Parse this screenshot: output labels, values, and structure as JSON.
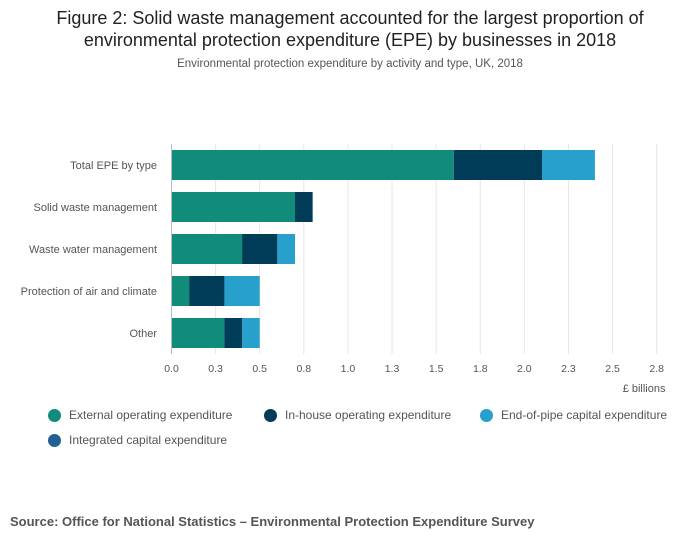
{
  "title_line1": "Figure 2: Solid waste management accounted for the largest proportion of",
  "title_line2": "environmental protection expenditure (EPE) by businesses in 2018",
  "subtitle": "Environmental protection expenditure by activity and type, UK, 2018",
  "source": "Source: Office for National Statistics – Environmental Protection Expenditure Survey",
  "colors": {
    "external": "#118c7b",
    "inhouse": "#003c57",
    "endofpipe": "#27a0cc",
    "integrated": "#206095",
    "grid": "#e6e6e6",
    "label": "#555555"
  },
  "chart_data": {
    "type": "bar",
    "orientation": "horizontal",
    "stacked": true,
    "title": "Figure 2: Solid waste management accounted for the largest proportion of environmental protection expenditure (EPE) by businesses in 2018",
    "subtitle": "Environmental protection expenditure by activity and type, UK, 2018",
    "xlabel": "£ billions",
    "ylabel": "",
    "xlim": [
      0,
      2.8
    ],
    "ticks": [
      0,
      0.25,
      0.5,
      0.75,
      1.0,
      1.25,
      1.5,
      1.75,
      2.0,
      2.25,
      2.5,
      2.75
    ],
    "tick_labels": [
      "0.0",
      "0.3",
      "0.5",
      "0.8",
      "1.0",
      "1.3",
      "1.5",
      "1.8",
      "2.0",
      "2.3",
      "2.5",
      "2.8"
    ],
    "categories": [
      "Total EPE by type",
      "Solid waste management",
      "Waste water management",
      "Protection of air and climate",
      "Other"
    ],
    "series": [
      {
        "name": "External operating expenditure",
        "color_key": "external",
        "values": [
          1.6,
          0.7,
          0.4,
          0.1,
          0.3
        ]
      },
      {
        "name": "In-house operating expenditure",
        "color_key": "inhouse",
        "values": [
          0.5,
          0.1,
          0.2,
          0.2,
          0.1
        ]
      },
      {
        "name": "End-of-pipe capital expenditure",
        "color_key": "endofpipe",
        "values": [
          0.3,
          0.0,
          0.1,
          0.2,
          0.1
        ]
      },
      {
        "name": "Integrated capital expenditure",
        "color_key": "integrated",
        "values": [
          0.0,
          0.0,
          0.0,
          0.0,
          0.0
        ]
      }
    ],
    "legend_position": "bottom",
    "grid": true
  }
}
